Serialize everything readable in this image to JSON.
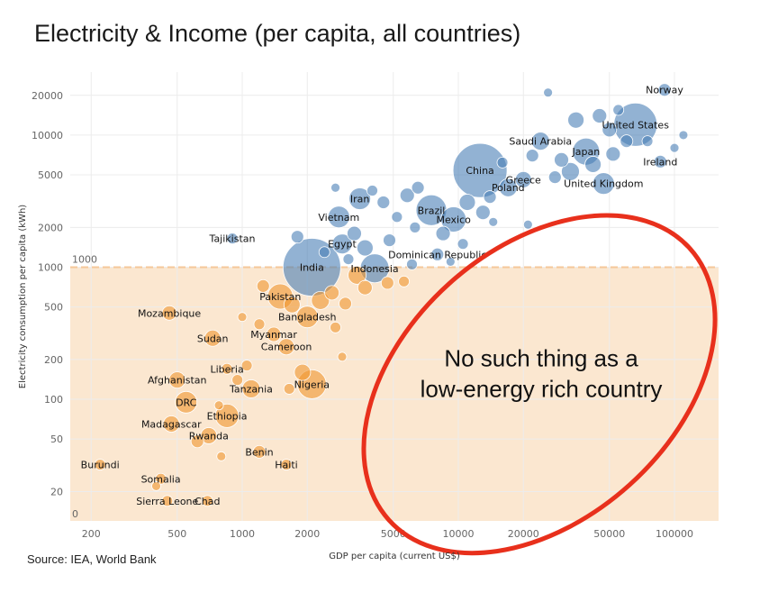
{
  "title": "Electricity & Income (per capita, all countries)",
  "source": "Source: IEA, World Bank",
  "colors": {
    "rich": "#4a7fb5",
    "poor": "#f0962e",
    "band": "#fbe7d0",
    "ellipse": "#e8301c"
  },
  "chart_data": {
    "type": "scatter",
    "title": "Electricity & Income (per capita, all countries)",
    "xlabel": "GDP per capita (current US$)",
    "ylabel": "Electricity consumption per capita (kWh)",
    "x_scale": "log",
    "y_scale": "log",
    "xlim": [
      160,
      160000
    ],
    "ylim": [
      12,
      30000
    ],
    "x_ticks": [
      "200",
      "500",
      "1000",
      "2000",
      "5000",
      "10000",
      "20000",
      "50000",
      "100000"
    ],
    "x_tick_values": [
      200,
      500,
      1000,
      2000,
      5000,
      10000,
      20000,
      50000,
      100000
    ],
    "y_ticks": [
      "20",
      "50",
      "100",
      "200",
      "500",
      "1000",
      "2000",
      "5000",
      "10000",
      "20000"
    ],
    "y_tick_values": [
      20,
      50,
      100,
      200,
      500,
      1000,
      2000,
      5000,
      10000,
      20000
    ],
    "threshold": {
      "value": 1000,
      "label": "1000"
    },
    "band_bottom_label": "0",
    "annotation": [
      "No such thing as a",
      "low-energy rich country"
    ],
    "grid": true,
    "points": [
      {
        "label": "Norway",
        "x": 90000,
        "y": 22000,
        "size": 7,
        "group": "rich"
      },
      {
        "label": "United States",
        "x": 66000,
        "y": 12000,
        "size": 24,
        "group": "rich"
      },
      {
        "label": "Saudi Arabia",
        "x": 24000,
        "y": 9000,
        "size": 10,
        "group": "rich"
      },
      {
        "label": "Japan",
        "x": 39000,
        "y": 7500,
        "size": 15,
        "group": "rich"
      },
      {
        "label": "Ireland",
        "x": 86000,
        "y": 6300,
        "size": 7,
        "group": "rich"
      },
      {
        "label": "China",
        "x": 12600,
        "y": 5400,
        "size": 30,
        "group": "rich"
      },
      {
        "label": "Greece",
        "x": 20000,
        "y": 4600,
        "size": 9,
        "group": "rich"
      },
      {
        "label": "Poland",
        "x": 17000,
        "y": 4000,
        "size": 10,
        "group": "rich"
      },
      {
        "label": "United Kingdom",
        "x": 47000,
        "y": 4300,
        "size": 12,
        "group": "rich"
      },
      {
        "label": "Iran",
        "x": 3500,
        "y": 3300,
        "size": 12,
        "group": "rich"
      },
      {
        "label": "Brazil",
        "x": 7500,
        "y": 2700,
        "size": 17,
        "group": "rich"
      },
      {
        "label": "Mexico",
        "x": 9500,
        "y": 2300,
        "size": 14,
        "group": "rich"
      },
      {
        "label": "Vietnam",
        "x": 2800,
        "y": 2400,
        "size": 12,
        "group": "rich"
      },
      {
        "label": "Tajikistan",
        "x": 900,
        "y": 1650,
        "size": 6,
        "group": "rich"
      },
      {
        "label": "Egypt",
        "x": 2900,
        "y": 1500,
        "size": 11,
        "group": "rich"
      },
      {
        "label": "Dominican Republic",
        "x": 8000,
        "y": 1250,
        "size": 7,
        "group": "rich"
      },
      {
        "label": "India",
        "x": 2100,
        "y": 1000,
        "size": 32,
        "group": "rich"
      },
      {
        "label": "Indonesia",
        "x": 4100,
        "y": 980,
        "size": 16,
        "group": "rich"
      },
      {
        "label": "Pakistan",
        "x": 1500,
        "y": 600,
        "size": 14,
        "group": "poor"
      },
      {
        "label": "Bangladesh",
        "x": 2000,
        "y": 420,
        "size": 12,
        "group": "poor"
      },
      {
        "label": "Mozambique",
        "x": 460,
        "y": 450,
        "size": 8,
        "group": "poor"
      },
      {
        "label": "Myanmar",
        "x": 1400,
        "y": 310,
        "size": 8,
        "group": "poor"
      },
      {
        "label": "Sudan",
        "x": 730,
        "y": 290,
        "size": 9,
        "group": "poor"
      },
      {
        "label": "Cameroon",
        "x": 1600,
        "y": 250,
        "size": 9,
        "group": "poor"
      },
      {
        "label": "Liberia",
        "x": 850,
        "y": 170,
        "size": 6,
        "group": "poor"
      },
      {
        "label": "Afghanistan",
        "x": 500,
        "y": 140,
        "size": 9,
        "group": "poor"
      },
      {
        "label": "Tanzania",
        "x": 1100,
        "y": 120,
        "size": 10,
        "group": "poor"
      },
      {
        "label": "Nigeria",
        "x": 2100,
        "y": 130,
        "size": 16,
        "group": "poor"
      },
      {
        "label": "DRC",
        "x": 550,
        "y": 95,
        "size": 12,
        "group": "poor"
      },
      {
        "label": "Ethiopia",
        "x": 850,
        "y": 75,
        "size": 13,
        "group": "poor"
      },
      {
        "label": "Madagascar",
        "x": 470,
        "y": 65,
        "size": 9,
        "group": "poor"
      },
      {
        "label": "Rwanda",
        "x": 700,
        "y": 53,
        "size": 9,
        "group": "poor"
      },
      {
        "label": "Benin",
        "x": 1200,
        "y": 40,
        "size": 7,
        "group": "poor"
      },
      {
        "label": "Haiti",
        "x": 1600,
        "y": 32,
        "size": 6,
        "group": "poor"
      },
      {
        "label": "Burundi",
        "x": 220,
        "y": 32,
        "size": 6,
        "group": "poor"
      },
      {
        "label": "Somalia",
        "x": 420,
        "y": 25,
        "size": 6,
        "group": "poor"
      },
      {
        "label": "Sierra Leone",
        "x": 450,
        "y": 17,
        "size": 6,
        "group": "poor"
      },
      {
        "label": "Chad",
        "x": 690,
        "y": 17,
        "size": 6,
        "group": "poor"
      },
      {
        "label": "",
        "x": 26000,
        "y": 21000,
        "size": 5,
        "group": "rich"
      },
      {
        "label": "",
        "x": 35000,
        "y": 13000,
        "size": 9,
        "group": "rich"
      },
      {
        "label": "",
        "x": 45000,
        "y": 14000,
        "size": 8,
        "group": "rich"
      },
      {
        "label": "",
        "x": 50000,
        "y": 11000,
        "size": 8,
        "group": "rich"
      },
      {
        "label": "",
        "x": 55000,
        "y": 15500,
        "size": 6,
        "group": "rich"
      },
      {
        "label": "",
        "x": 60000,
        "y": 9000,
        "size": 7,
        "group": "rich"
      },
      {
        "label": "",
        "x": 75000,
        "y": 9000,
        "size": 6,
        "group": "rich"
      },
      {
        "label": "",
        "x": 110000,
        "y": 10000,
        "size": 5,
        "group": "rich"
      },
      {
        "label": "",
        "x": 100000,
        "y": 8000,
        "size": 5,
        "group": "rich"
      },
      {
        "label": "",
        "x": 30000,
        "y": 6500,
        "size": 8,
        "group": "rich"
      },
      {
        "label": "",
        "x": 28000,
        "y": 4800,
        "size": 7,
        "group": "rich"
      },
      {
        "label": "",
        "x": 33000,
        "y": 5300,
        "size": 10,
        "group": "rich"
      },
      {
        "label": "",
        "x": 42000,
        "y": 6000,
        "size": 9,
        "group": "rich"
      },
      {
        "label": "",
        "x": 52000,
        "y": 7200,
        "size": 8,
        "group": "rich"
      },
      {
        "label": "",
        "x": 22000,
        "y": 7000,
        "size": 7,
        "group": "rich"
      },
      {
        "label": "",
        "x": 16000,
        "y": 6200,
        "size": 6,
        "group": "rich"
      },
      {
        "label": "",
        "x": 14000,
        "y": 3400,
        "size": 7,
        "group": "rich"
      },
      {
        "label": "",
        "x": 11000,
        "y": 3100,
        "size": 9,
        "group": "rich"
      },
      {
        "label": "",
        "x": 13000,
        "y": 2600,
        "size": 8,
        "group": "rich"
      },
      {
        "label": "",
        "x": 6500,
        "y": 4000,
        "size": 7,
        "group": "rich"
      },
      {
        "label": "",
        "x": 5800,
        "y": 3500,
        "size": 8,
        "group": "rich"
      },
      {
        "label": "",
        "x": 4500,
        "y": 3100,
        "size": 7,
        "group": "rich"
      },
      {
        "label": "",
        "x": 4000,
        "y": 3800,
        "size": 6,
        "group": "rich"
      },
      {
        "label": "",
        "x": 2700,
        "y": 4000,
        "size": 5,
        "group": "rich"
      },
      {
        "label": "",
        "x": 5200,
        "y": 2400,
        "size": 6,
        "group": "rich"
      },
      {
        "label": "",
        "x": 6300,
        "y": 2000,
        "size": 6,
        "group": "rich"
      },
      {
        "label": "",
        "x": 8500,
        "y": 1800,
        "size": 8,
        "group": "rich"
      },
      {
        "label": "",
        "x": 10500,
        "y": 1500,
        "size": 6,
        "group": "rich"
      },
      {
        "label": "",
        "x": 14500,
        "y": 2200,
        "size": 5,
        "group": "rich"
      },
      {
        "label": "",
        "x": 21000,
        "y": 2100,
        "size": 5,
        "group": "rich"
      },
      {
        "label": "",
        "x": 3300,
        "y": 1800,
        "size": 8,
        "group": "rich"
      },
      {
        "label": "",
        "x": 3700,
        "y": 1400,
        "size": 9,
        "group": "rich"
      },
      {
        "label": "",
        "x": 4800,
        "y": 1600,
        "size": 7,
        "group": "rich"
      },
      {
        "label": "",
        "x": 2400,
        "y": 1300,
        "size": 6,
        "group": "rich"
      },
      {
        "label": "",
        "x": 1800,
        "y": 1700,
        "size": 7,
        "group": "rich"
      },
      {
        "label": "",
        "x": 3100,
        "y": 1150,
        "size": 6,
        "group": "rich"
      },
      {
        "label": "",
        "x": 6100,
        "y": 1050,
        "size": 6,
        "group": "rich"
      },
      {
        "label": "",
        "x": 9200,
        "y": 1100,
        "size": 5,
        "group": "rich"
      },
      {
        "label": "",
        "x": 1250,
        "y": 720,
        "size": 7,
        "group": "poor"
      },
      {
        "label": "",
        "x": 1700,
        "y": 520,
        "size": 9,
        "group": "poor"
      },
      {
        "label": "",
        "x": 2300,
        "y": 560,
        "size": 10,
        "group": "poor"
      },
      {
        "label": "",
        "x": 2600,
        "y": 640,
        "size": 8,
        "group": "poor"
      },
      {
        "label": "",
        "x": 3000,
        "y": 530,
        "size": 7,
        "group": "poor"
      },
      {
        "label": "",
        "x": 3400,
        "y": 870,
        "size": 10,
        "group": "poor"
      },
      {
        "label": "",
        "x": 3700,
        "y": 700,
        "size": 8,
        "group": "poor"
      },
      {
        "label": "",
        "x": 4700,
        "y": 760,
        "size": 7,
        "group": "poor"
      },
      {
        "label": "",
        "x": 5600,
        "y": 780,
        "size": 6,
        "group": "poor"
      },
      {
        "label": "",
        "x": 2700,
        "y": 350,
        "size": 6,
        "group": "poor"
      },
      {
        "label": "",
        "x": 2900,
        "y": 210,
        "size": 5,
        "group": "poor"
      },
      {
        "label": "",
        "x": 1900,
        "y": 160,
        "size": 9,
        "group": "poor"
      },
      {
        "label": "",
        "x": 1650,
        "y": 120,
        "size": 6,
        "group": "poor"
      },
      {
        "label": "",
        "x": 1200,
        "y": 370,
        "size": 6,
        "group": "poor"
      },
      {
        "label": "",
        "x": 1050,
        "y": 180,
        "size": 6,
        "group": "poor"
      },
      {
        "label": "",
        "x": 950,
        "y": 140,
        "size": 6,
        "group": "poor"
      },
      {
        "label": "",
        "x": 780,
        "y": 90,
        "size": 5,
        "group": "poor"
      },
      {
        "label": "",
        "x": 800,
        "y": 37,
        "size": 5,
        "group": "poor"
      },
      {
        "label": "",
        "x": 620,
        "y": 48,
        "size": 7,
        "group": "poor"
      },
      {
        "label": "",
        "x": 400,
        "y": 22,
        "size": 5,
        "group": "poor"
      },
      {
        "label": "",
        "x": 1000,
        "y": 420,
        "size": 5,
        "group": "poor"
      }
    ]
  }
}
